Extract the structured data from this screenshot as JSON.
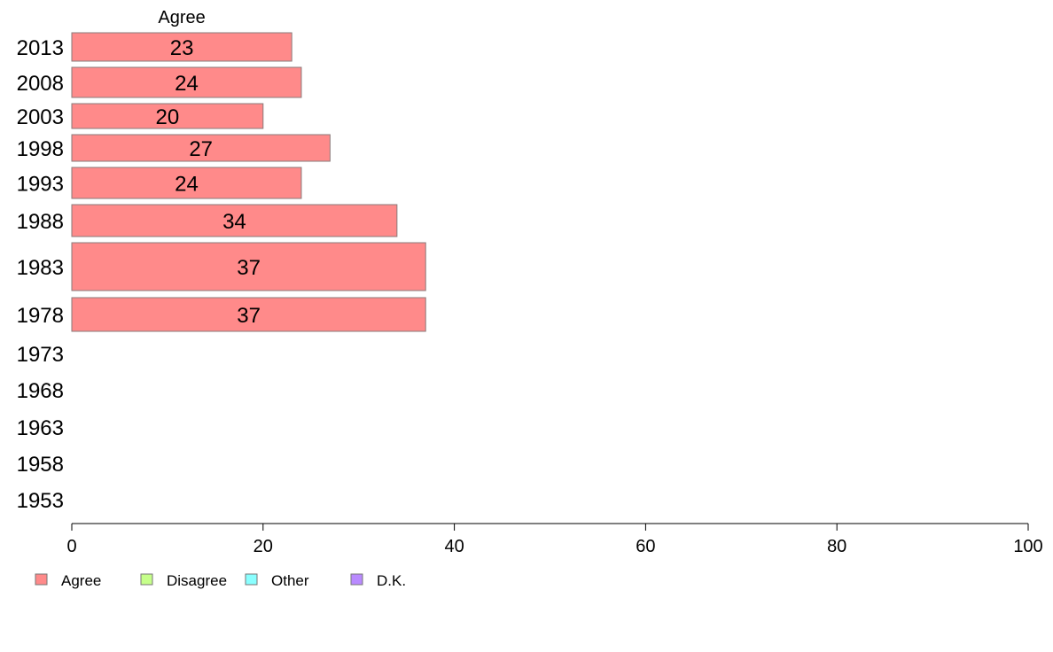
{
  "chart_data": {
    "type": "bar",
    "orientation": "horizontal",
    "stacked": true,
    "categories": [
      "2013",
      "2008",
      "2003",
      "1998",
      "1993",
      "1988",
      "1983",
      "1978",
      "1973",
      "1968",
      "1963",
      "1958",
      "1953"
    ],
    "series": [
      {
        "name": "Agree",
        "color": "#ff8a8a",
        "values": [
          23,
          24,
          20,
          27,
          24,
          34,
          37,
          37,
          null,
          null,
          null,
          null,
          null
        ]
      }
    ],
    "segment_header": "Agree",
    "xlim": [
      0,
      100
    ],
    "xticks": [
      0,
      20,
      40,
      60,
      80,
      100
    ],
    "xlabel": "",
    "ylabel": "",
    "grid": false,
    "legend": {
      "position": "bottom-left",
      "items": [
        {
          "label": "Agree",
          "color": "#ff8a8a"
        },
        {
          "label": "Disagree",
          "color": "#c6ff8a"
        },
        {
          "label": "Other",
          "color": "#8affff"
        },
        {
          "label": "D.K.",
          "color": "#b98aff"
        }
      ]
    }
  }
}
